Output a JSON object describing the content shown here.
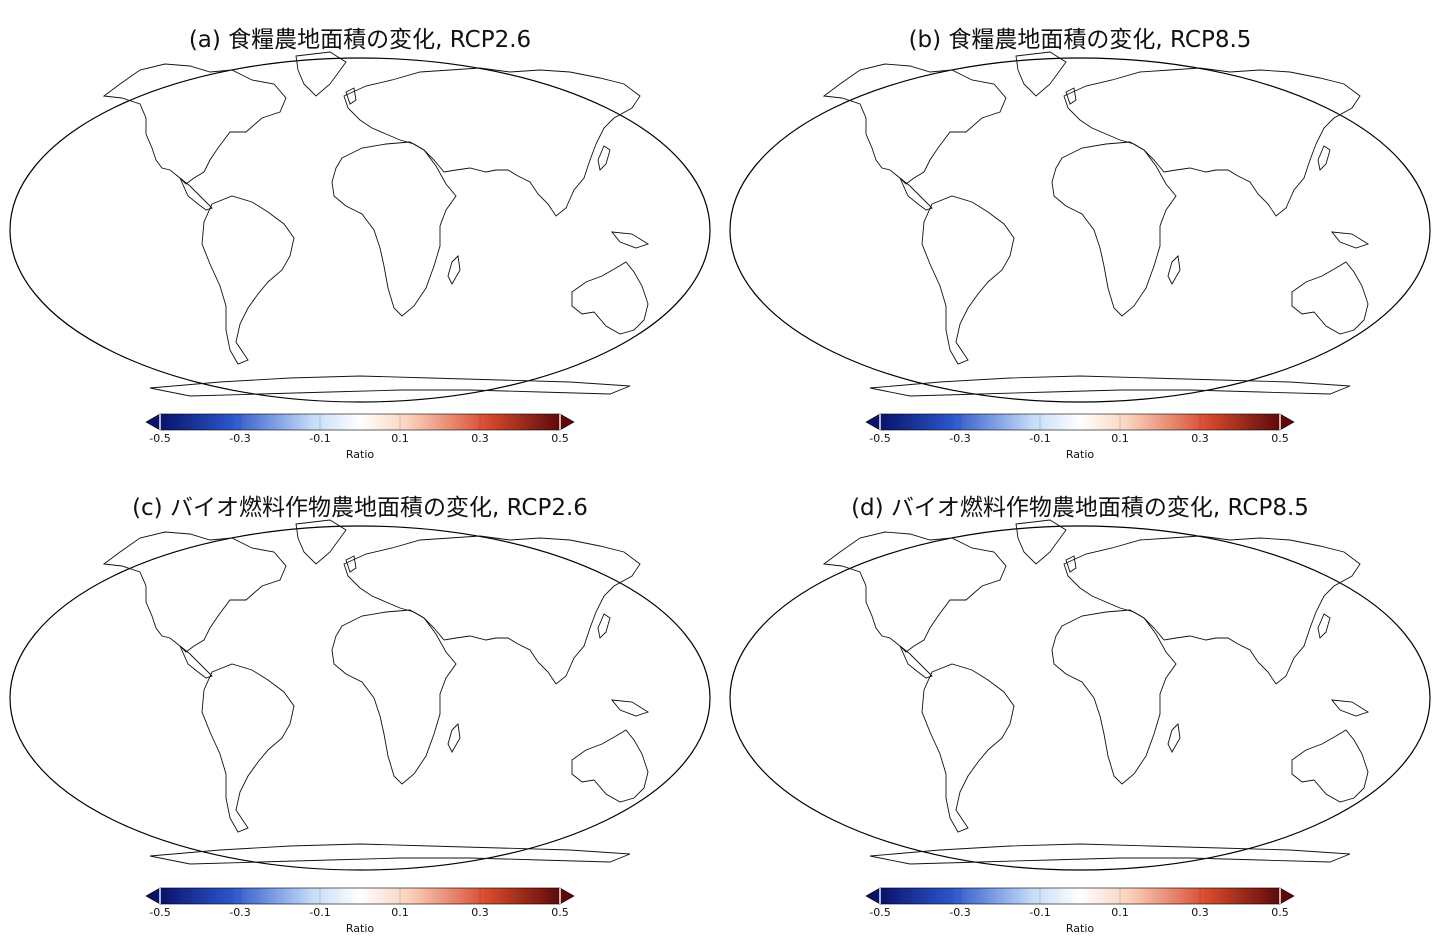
{
  "panels": [
    {
      "id": "a",
      "title": "(a) 食糧農地面積の変化, RCP2.6"
    },
    {
      "id": "b",
      "title": "(b) 食糧農地面積の変化, RCP8.5"
    },
    {
      "id": "c",
      "title": "(c) バイオ燃料作物農地面積の変化, RCP2.6"
    },
    {
      "id": "d",
      "title": "(d) バイオ燃料作物農地面積の変化, RCP8.5"
    }
  ],
  "colorbar": {
    "label": "Ratio",
    "min": -0.5,
    "max": 0.5,
    "ticks": [
      "-0.5",
      "-0.3",
      "-0.1",
      "0.1",
      "0.3",
      "0.5"
    ],
    "colors": {
      "neg_extreme": "#08136b",
      "neg_strong": "#2c56c9",
      "neg_light": "#c5dbf7",
      "neutral": "#ffffff",
      "pos_light": "#fbd3bd",
      "pos_strong": "#d6492e",
      "pos_extreme": "#5e0a0a"
    }
  }
}
